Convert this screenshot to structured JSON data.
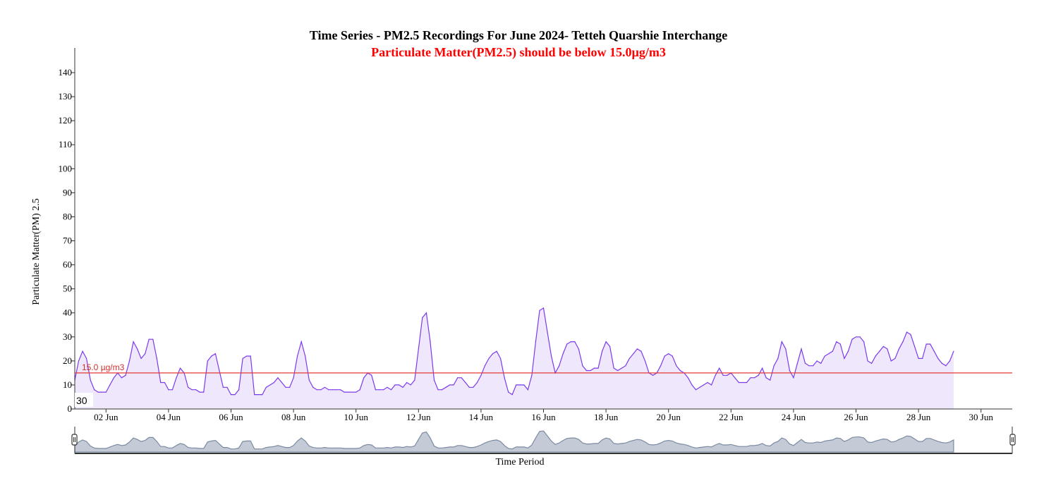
{
  "chart_data": {
    "type": "area",
    "title": "Time Series - PM2.5 Recordings For June 2024- Tetteh Quarshie Interchange",
    "subtitle": "Particulate Matter(PM2.5) should be below 15.0µg/m3",
    "xlabel": "Time Period",
    "ylabel": "Particulate Matter(PM) 2.5",
    "ylim": [
      0,
      150
    ],
    "yticks": [
      "0",
      "10",
      "20",
      "30",
      "40",
      "50",
      "60",
      "70",
      "80",
      "90",
      "100",
      "110",
      "120",
      "130",
      "140"
    ],
    "xlim": [
      "2024-06-01",
      "2024-07-01"
    ],
    "xticks": [
      {
        "x": "2024-06-02",
        "label": "02 Jun"
      },
      {
        "x": "2024-06-04",
        "label": "04 Jun"
      },
      {
        "x": "2024-06-06",
        "label": "06 Jun"
      },
      {
        "x": "2024-06-08",
        "label": "08 Jun"
      },
      {
        "x": "2024-06-10",
        "label": "10 Jun"
      },
      {
        "x": "2024-06-12",
        "label": "12 Jun"
      },
      {
        "x": "2024-06-14",
        "label": "14 Jun"
      },
      {
        "x": "2024-06-16",
        "label": "16 Jun"
      },
      {
        "x": "2024-06-18",
        "label": "18 Jun"
      },
      {
        "x": "2024-06-20",
        "label": "20 Jun"
      },
      {
        "x": "2024-06-22",
        "label": "22 Jun"
      },
      {
        "x": "2024-06-24",
        "label": "24 Jun"
      },
      {
        "x": "2024-06-26",
        "label": "26 Jun"
      },
      {
        "x": "2024-06-28",
        "label": "28 Jun"
      },
      {
        "x": "2024-06-30",
        "label": "30 Jun"
      }
    ],
    "threshold": {
      "value": 15.0,
      "label": "15.0 µg/m3",
      "color": "#e53935"
    },
    "cursor_readout": "30",
    "series": [
      {
        "color": "#7c3aed",
        "fill": "#efe8fc",
        "points": [
          [
            "2024-06-01 00:00",
            12
          ],
          [
            "2024-06-01 03:00",
            20
          ],
          [
            "2024-06-01 06:00",
            24
          ],
          [
            "2024-06-01 09:00",
            21
          ],
          [
            "2024-06-01 12:00",
            12
          ],
          [
            "2024-06-01 15:00",
            8
          ],
          [
            "2024-06-01 18:00",
            7
          ],
          [
            "2024-06-01 21:00",
            7
          ],
          [
            "2024-06-02 00:00",
            7
          ],
          [
            "2024-06-02 03:00",
            10
          ],
          [
            "2024-06-02 06:00",
            13
          ],
          [
            "2024-06-02 09:00",
            15
          ],
          [
            "2024-06-02 12:00",
            13
          ],
          [
            "2024-06-02 15:00",
            14
          ],
          [
            "2024-06-02 18:00",
            20
          ],
          [
            "2024-06-02 21:00",
            28
          ],
          [
            "2024-06-03 00:00",
            25
          ],
          [
            "2024-06-03 03:00",
            21
          ],
          [
            "2024-06-03 06:00",
            23
          ],
          [
            "2024-06-03 09:00",
            29
          ],
          [
            "2024-06-03 12:00",
            29
          ],
          [
            "2024-06-03 15:00",
            21
          ],
          [
            "2024-06-03 18:00",
            11
          ],
          [
            "2024-06-03 21:00",
            11
          ],
          [
            "2024-06-04 00:00",
            8
          ],
          [
            "2024-06-04 03:00",
            8
          ],
          [
            "2024-06-04 06:00",
            13
          ],
          [
            "2024-06-04 09:00",
            17
          ],
          [
            "2024-06-04 12:00",
            15
          ],
          [
            "2024-06-04 15:00",
            9
          ],
          [
            "2024-06-04 18:00",
            8
          ],
          [
            "2024-06-04 21:00",
            8
          ],
          [
            "2024-06-05 00:00",
            7
          ],
          [
            "2024-06-05 03:00",
            7
          ],
          [
            "2024-06-05 06:00",
            20
          ],
          [
            "2024-06-05 09:00",
            22
          ],
          [
            "2024-06-05 12:00",
            23
          ],
          [
            "2024-06-05 15:00",
            16
          ],
          [
            "2024-06-05 18:00",
            9
          ],
          [
            "2024-06-05 21:00",
            9
          ],
          [
            "2024-06-06 00:00",
            6
          ],
          [
            "2024-06-06 03:00",
            6
          ],
          [
            "2024-06-06 06:00",
            8
          ],
          [
            "2024-06-06 09:00",
            21
          ],
          [
            "2024-06-06 12:00",
            22
          ],
          [
            "2024-06-06 15:00",
            22
          ],
          [
            "2024-06-06 18:00",
            6
          ],
          [
            "2024-06-06 21:00",
            6
          ],
          [
            "2024-06-07 00:00",
            6
          ],
          [
            "2024-06-07 03:00",
            9
          ],
          [
            "2024-06-07 06:00",
            10
          ],
          [
            "2024-06-07 09:00",
            11
          ],
          [
            "2024-06-07 12:00",
            13
          ],
          [
            "2024-06-07 15:00",
            11
          ],
          [
            "2024-06-07 18:00",
            9
          ],
          [
            "2024-06-07 21:00",
            9
          ],
          [
            "2024-06-08 00:00",
            13
          ],
          [
            "2024-06-08 03:00",
            22
          ],
          [
            "2024-06-08 06:00",
            28
          ],
          [
            "2024-06-08 09:00",
            22
          ],
          [
            "2024-06-08 12:00",
            12
          ],
          [
            "2024-06-08 15:00",
            9
          ],
          [
            "2024-06-08 18:00",
            8
          ],
          [
            "2024-06-08 21:00",
            8
          ],
          [
            "2024-06-09 00:00",
            9
          ],
          [
            "2024-06-09 03:00",
            8
          ],
          [
            "2024-06-09 06:00",
            8
          ],
          [
            "2024-06-09 09:00",
            8
          ],
          [
            "2024-06-09 12:00",
            8
          ],
          [
            "2024-06-09 15:00",
            7
          ],
          [
            "2024-06-09 18:00",
            7
          ],
          [
            "2024-06-09 21:00",
            7
          ],
          [
            "2024-06-10 00:00",
            7
          ],
          [
            "2024-06-10 03:00",
            8
          ],
          [
            "2024-06-10 06:00",
            13
          ],
          [
            "2024-06-10 09:00",
            15
          ],
          [
            "2024-06-10 12:00",
            14
          ],
          [
            "2024-06-10 15:00",
            8
          ],
          [
            "2024-06-10 18:00",
            8
          ],
          [
            "2024-06-10 21:00",
            8
          ],
          [
            "2024-06-11 00:00",
            9
          ],
          [
            "2024-06-11 03:00",
            8
          ],
          [
            "2024-06-11 06:00",
            10
          ],
          [
            "2024-06-11 09:00",
            10
          ],
          [
            "2024-06-11 12:00",
            9
          ],
          [
            "2024-06-11 15:00",
            11
          ],
          [
            "2024-06-11 18:00",
            10
          ],
          [
            "2024-06-11 21:00",
            12
          ],
          [
            "2024-06-12 00:00",
            25
          ],
          [
            "2024-06-12 03:00",
            38
          ],
          [
            "2024-06-12 06:00",
            40
          ],
          [
            "2024-06-12 09:00",
            28
          ],
          [
            "2024-06-12 12:00",
            12
          ],
          [
            "2024-06-12 15:00",
            8
          ],
          [
            "2024-06-12 18:00",
            8
          ],
          [
            "2024-06-12 21:00",
            9
          ],
          [
            "2024-06-13 00:00",
            10
          ],
          [
            "2024-06-13 03:00",
            10
          ],
          [
            "2024-06-13 06:00",
            13
          ],
          [
            "2024-06-13 09:00",
            13
          ],
          [
            "2024-06-13 12:00",
            11
          ],
          [
            "2024-06-13 15:00",
            9
          ],
          [
            "2024-06-13 18:00",
            9
          ],
          [
            "2024-06-13 21:00",
            11
          ],
          [
            "2024-06-14 00:00",
            14
          ],
          [
            "2024-06-14 03:00",
            18
          ],
          [
            "2024-06-14 06:00",
            21
          ],
          [
            "2024-06-14 09:00",
            23
          ],
          [
            "2024-06-14 12:00",
            24
          ],
          [
            "2024-06-14 15:00",
            21
          ],
          [
            "2024-06-14 18:00",
            13
          ],
          [
            "2024-06-14 21:00",
            7
          ],
          [
            "2024-06-15 00:00",
            6
          ],
          [
            "2024-06-15 03:00",
            10
          ],
          [
            "2024-06-15 06:00",
            10
          ],
          [
            "2024-06-15 09:00",
            10
          ],
          [
            "2024-06-15 12:00",
            8
          ],
          [
            "2024-06-15 15:00",
            14
          ],
          [
            "2024-06-15 18:00",
            28
          ],
          [
            "2024-06-15 21:00",
            41
          ],
          [
            "2024-06-16 00:00",
            42
          ],
          [
            "2024-06-16 03:00",
            32
          ],
          [
            "2024-06-16 06:00",
            22
          ],
          [
            "2024-06-16 09:00",
            15
          ],
          [
            "2024-06-16 12:00",
            18
          ],
          [
            "2024-06-16 15:00",
            23
          ],
          [
            "2024-06-16 18:00",
            27
          ],
          [
            "2024-06-16 21:00",
            28
          ],
          [
            "2024-06-17 00:00",
            28
          ],
          [
            "2024-06-17 03:00",
            25
          ],
          [
            "2024-06-17 06:00",
            18
          ],
          [
            "2024-06-17 09:00",
            16
          ],
          [
            "2024-06-17 12:00",
            16
          ],
          [
            "2024-06-17 15:00",
            17
          ],
          [
            "2024-06-17 18:00",
            17
          ],
          [
            "2024-06-17 21:00",
            24
          ],
          [
            "2024-06-18 00:00",
            28
          ],
          [
            "2024-06-18 03:00",
            26
          ],
          [
            "2024-06-18 06:00",
            17
          ],
          [
            "2024-06-18 09:00",
            16
          ],
          [
            "2024-06-18 12:00",
            17
          ],
          [
            "2024-06-18 15:00",
            18
          ],
          [
            "2024-06-18 18:00",
            21
          ],
          [
            "2024-06-18 21:00",
            23
          ],
          [
            "2024-06-19 00:00",
            25
          ],
          [
            "2024-06-19 03:00",
            24
          ],
          [
            "2024-06-19 06:00",
            20
          ],
          [
            "2024-06-19 09:00",
            15
          ],
          [
            "2024-06-19 12:00",
            14
          ],
          [
            "2024-06-19 15:00",
            15
          ],
          [
            "2024-06-19 18:00",
            18
          ],
          [
            "2024-06-19 21:00",
            22
          ],
          [
            "2024-06-20 00:00",
            23
          ],
          [
            "2024-06-20 03:00",
            22
          ],
          [
            "2024-06-20 06:00",
            18
          ],
          [
            "2024-06-20 09:00",
            16
          ],
          [
            "2024-06-20 12:00",
            15
          ],
          [
            "2024-06-20 15:00",
            13
          ],
          [
            "2024-06-20 18:00",
            10
          ],
          [
            "2024-06-20 21:00",
            8
          ],
          [
            "2024-06-21 00:00",
            9
          ],
          [
            "2024-06-21 03:00",
            10
          ],
          [
            "2024-06-21 06:00",
            11
          ],
          [
            "2024-06-21 09:00",
            10
          ],
          [
            "2024-06-21 12:00",
            14
          ],
          [
            "2024-06-21 15:00",
            17
          ],
          [
            "2024-06-21 18:00",
            14
          ],
          [
            "2024-06-21 21:00",
            14
          ],
          [
            "2024-06-22 00:00",
            15
          ],
          [
            "2024-06-22 03:00",
            13
          ],
          [
            "2024-06-22 06:00",
            11
          ],
          [
            "2024-06-22 09:00",
            11
          ],
          [
            "2024-06-22 12:00",
            11
          ],
          [
            "2024-06-22 15:00",
            13
          ],
          [
            "2024-06-22 18:00",
            13
          ],
          [
            "2024-06-22 21:00",
            14
          ],
          [
            "2024-06-23 00:00",
            17
          ],
          [
            "2024-06-23 03:00",
            13
          ],
          [
            "2024-06-23 06:00",
            12
          ],
          [
            "2024-06-23 09:00",
            18
          ],
          [
            "2024-06-23 12:00",
            21
          ],
          [
            "2024-06-23 15:00",
            28
          ],
          [
            "2024-06-23 18:00",
            25
          ],
          [
            "2024-06-23 21:00",
            16
          ],
          [
            "2024-06-24 00:00",
            13
          ],
          [
            "2024-06-24 03:00",
            19
          ],
          [
            "2024-06-24 06:00",
            25
          ],
          [
            "2024-06-24 09:00",
            19
          ],
          [
            "2024-06-24 12:00",
            18
          ],
          [
            "2024-06-24 15:00",
            18
          ],
          [
            "2024-06-24 18:00",
            20
          ],
          [
            "2024-06-24 21:00",
            19
          ],
          [
            "2024-06-25 00:00",
            22
          ],
          [
            "2024-06-25 03:00",
            23
          ],
          [
            "2024-06-25 06:00",
            24
          ],
          [
            "2024-06-25 09:00",
            28
          ],
          [
            "2024-06-25 12:00",
            27
          ],
          [
            "2024-06-25 15:00",
            21
          ],
          [
            "2024-06-25 18:00",
            24
          ],
          [
            "2024-06-25 21:00",
            29
          ],
          [
            "2024-06-26 00:00",
            30
          ],
          [
            "2024-06-26 03:00",
            30
          ],
          [
            "2024-06-26 06:00",
            28
          ],
          [
            "2024-06-26 09:00",
            20
          ],
          [
            "2024-06-26 12:00",
            19
          ],
          [
            "2024-06-26 15:00",
            22
          ],
          [
            "2024-06-26 18:00",
            24
          ],
          [
            "2024-06-26 21:00",
            26
          ],
          [
            "2024-06-27 00:00",
            25
          ],
          [
            "2024-06-27 03:00",
            20
          ],
          [
            "2024-06-27 06:00",
            21
          ],
          [
            "2024-06-27 09:00",
            25
          ],
          [
            "2024-06-27 12:00",
            28
          ],
          [
            "2024-06-27 15:00",
            32
          ],
          [
            "2024-06-27 18:00",
            31
          ],
          [
            "2024-06-27 21:00",
            26
          ],
          [
            "2024-06-28 00:00",
            21
          ],
          [
            "2024-06-28 03:00",
            21
          ],
          [
            "2024-06-28 06:00",
            27
          ],
          [
            "2024-06-28 09:00",
            27
          ],
          [
            "2024-06-28 12:00",
            24
          ],
          [
            "2024-06-28 15:00",
            21
          ],
          [
            "2024-06-28 18:00",
            19
          ],
          [
            "2024-06-28 21:00",
            18
          ],
          [
            "2024-06-29 00:00",
            20
          ],
          [
            "2024-06-29 03:00",
            24
          ]
        ]
      }
    ]
  }
}
